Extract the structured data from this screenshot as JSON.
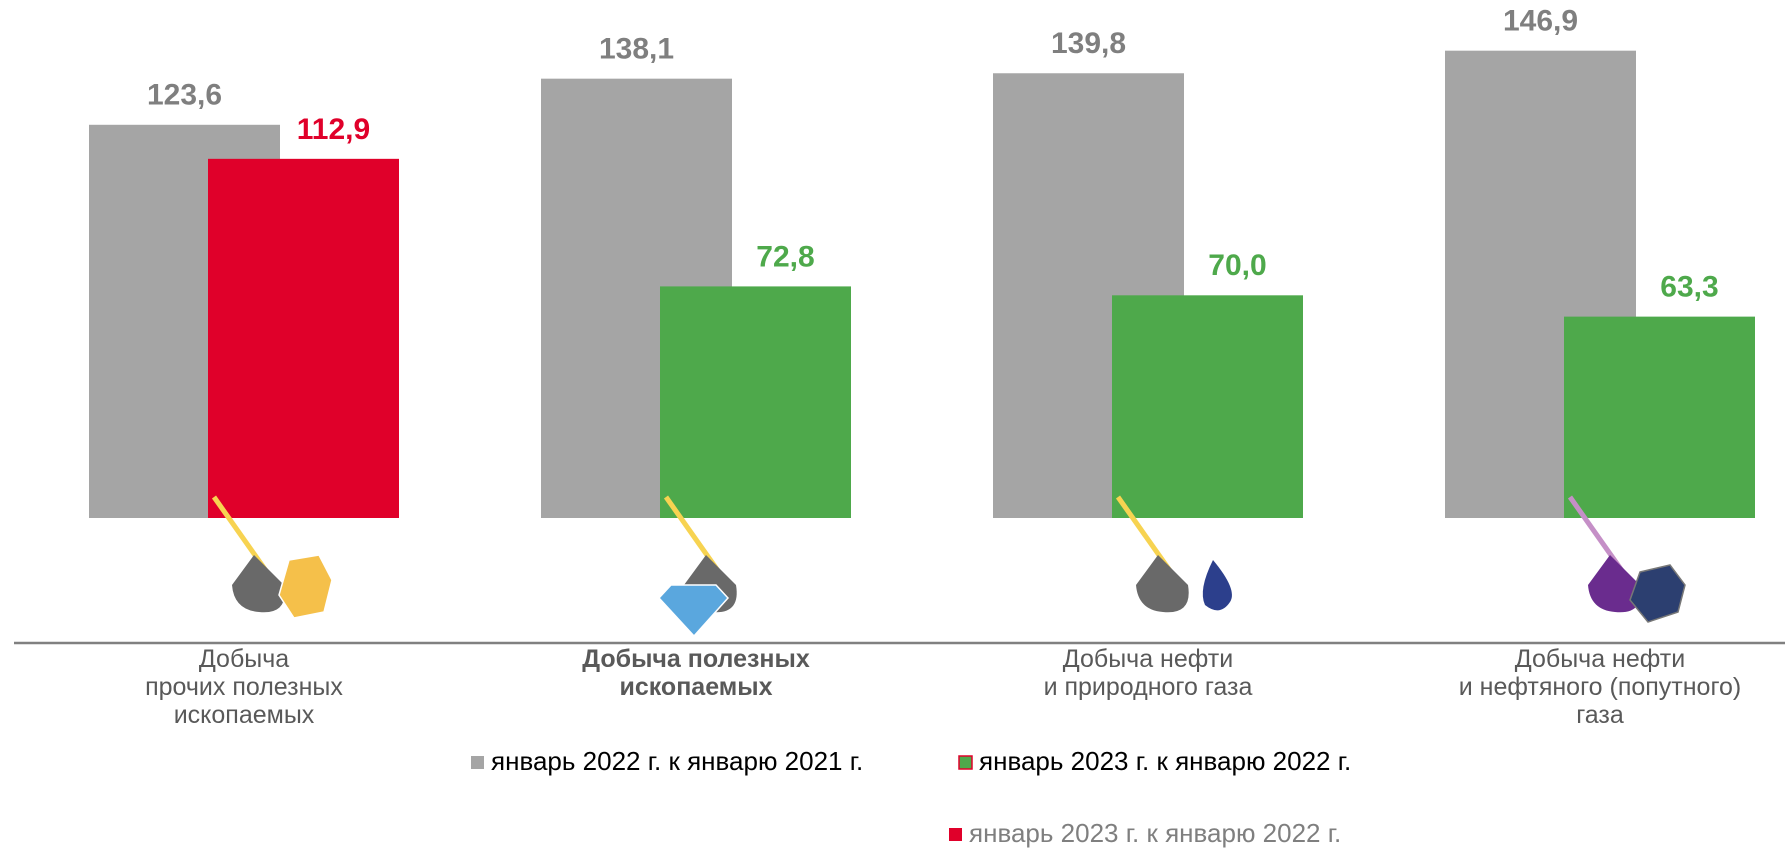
{
  "chart_data": {
    "type": "bar",
    "categories": [
      "Добыча\nпрочих полезных\nископаемых",
      "Добыча полезных\nископаемых",
      "Добыча нефти\nи природного газа",
      "Добыча нефти\nи нефтяного (попутного)\nгаза"
    ],
    "series": [
      {
        "name": "январь 2022 г. к январю 2021 г.",
        "color": "#a5a5a5",
        "values": [
          123.6,
          138.1,
          139.8,
          146.9
        ],
        "value_labels": [
          "123,6",
          "138,1",
          "139,8",
          "146,9"
        ]
      },
      {
        "name": "январь 2023 г. к январю 2022 г.",
        "color": "#4ea94b",
        "values": [
          null,
          72.8,
          70.0,
          63.3
        ],
        "value_labels": [
          null,
          "72,8",
          "70,0",
          "63,3"
        ]
      },
      {
        "name": "январь 2023 г. к январю 2022 г.",
        "color": "#e0002a",
        "values": [
          112.9,
          null,
          null,
          null
        ],
        "value_labels": [
          "112,9",
          null,
          null,
          null
        ]
      }
    ],
    "ylim": [
      0,
      160
    ]
  }
}
